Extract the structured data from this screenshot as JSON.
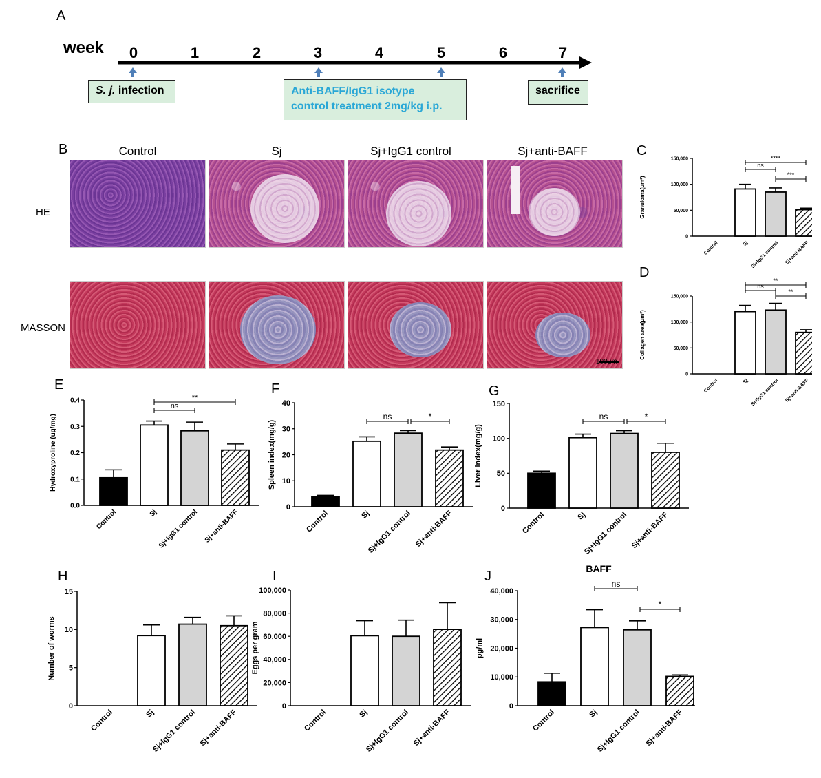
{
  "panels": {
    "A": "A",
    "B": "B",
    "C": "C",
    "D": "D",
    "E": "E",
    "F": "F",
    "G": "G",
    "H": "H",
    "I": "I",
    "J": "J"
  },
  "timeline": {
    "label": "week",
    "ticks": [
      "0",
      "1",
      "2",
      "3",
      "4",
      "5",
      "6",
      "7"
    ],
    "box_infection_italic": "S. j.",
    "box_infection_rest": " infection",
    "box_treatment_line1": "Anti-BAFF/IgG1 isotype",
    "box_treatment_line2": "control  treatment  2mg/kg i.p.",
    "box_sacrifice": "sacrifice"
  },
  "histology": {
    "columns": [
      "Control",
      "Sj",
      "Sj+IgG1 control",
      "Sj+anti-BAFF"
    ],
    "rows": [
      "HE",
      "MASSON"
    ],
    "scale_bar": "100μm"
  },
  "colors": {
    "dark": "#000000",
    "white": "#ffffff",
    "gray": "#d4d4d4"
  },
  "chart_data": [
    {
      "id": "C",
      "type": "bar",
      "categories": [
        "Control",
        "Sj",
        "Sj+IgG1 control",
        "Sj+anti-BAFF"
      ],
      "values": [
        0,
        91000,
        85000,
        51000
      ],
      "errors": [
        0,
        9000,
        8000,
        3000
      ],
      "ylabel": "Granuloma(μm²)",
      "ylim": [
        0,
        150000
      ],
      "yticks": [
        "0",
        "50,000",
        "100,000",
        "150,000"
      ],
      "fills": [
        "dark",
        "white",
        "gray",
        "hatch"
      ],
      "significance": [
        {
          "from": 1,
          "to": 2,
          "label": "ns"
        },
        {
          "from": 1,
          "to": 3,
          "label": "****"
        },
        {
          "from": 2,
          "to": 3,
          "label": "***"
        }
      ]
    },
    {
      "id": "D",
      "type": "bar",
      "categories": [
        "Control",
        "Sj",
        "Sj+IgG1 control",
        "Sj+anti-BAFF"
      ],
      "values": [
        0,
        120000,
        123000,
        80000
      ],
      "errors": [
        0,
        12000,
        13000,
        5000
      ],
      "ylabel": "Collagen area(μm²)",
      "ylim": [
        0,
        150000
      ],
      "yticks": [
        "0",
        "50,000",
        "100,000",
        "150,000"
      ],
      "fills": [
        "dark",
        "white",
        "gray",
        "hatch"
      ],
      "significance": [
        {
          "from": 1,
          "to": 2,
          "label": "ns"
        },
        {
          "from": 1,
          "to": 3,
          "label": "**"
        },
        {
          "from": 2,
          "to": 3,
          "label": "**"
        }
      ]
    },
    {
      "id": "E",
      "type": "bar",
      "categories": [
        "Control",
        "Sj",
        "Sj+IgG1 control",
        "Sj+anti-BAFF"
      ],
      "values": [
        0.105,
        0.305,
        0.283,
        0.21
      ],
      "errors": [
        0.03,
        0.015,
        0.033,
        0.023
      ],
      "ylabel": "Hydroxyproline (ug/mg)",
      "ylim": [
        0,
        0.4
      ],
      "yticks": [
        "0.0",
        "0.1",
        "0.2",
        "0.3",
        "0.4"
      ],
      "fills": [
        "dark",
        "white",
        "gray",
        "hatch"
      ],
      "significance": [
        {
          "from": 1,
          "to": 2,
          "label": "ns"
        },
        {
          "from": 1,
          "to": 3,
          "label": "**"
        }
      ]
    },
    {
      "id": "F",
      "type": "bar",
      "categories": [
        "Control",
        "Sj",
        "Sj+IgG1 control",
        "Sj+anti-BAFF"
      ],
      "values": [
        4,
        25.2,
        28.3,
        21.8
      ],
      "errors": [
        0.4,
        1.7,
        1.0,
        1.2
      ],
      "ylabel": "Spleen index(mg/g)",
      "ylim": [
        0,
        40
      ],
      "yticks": [
        "0",
        "10",
        "20",
        "30",
        "40"
      ],
      "fills": [
        "dark",
        "white",
        "gray",
        "hatch"
      ],
      "significance": [
        {
          "from": 1,
          "to": 2,
          "label": "ns"
        },
        {
          "from": 2,
          "to": 3,
          "label": "*"
        }
      ]
    },
    {
      "id": "G",
      "type": "bar",
      "categories": [
        "Control",
        "Sj",
        "Sj+IgG1 control",
        "Sj+anti-BAFF"
      ],
      "values": [
        50,
        101,
        107,
        80
      ],
      "errors": [
        3,
        5,
        4,
        13
      ],
      "ylabel": "Liver index(mg/g)",
      "ylim": [
        0,
        150
      ],
      "yticks": [
        "0",
        "50",
        "100",
        "150"
      ],
      "fills": [
        "dark",
        "white",
        "gray",
        "hatch"
      ],
      "significance": [
        {
          "from": 1,
          "to": 2,
          "label": "ns"
        },
        {
          "from": 2,
          "to": 3,
          "label": "*"
        }
      ]
    },
    {
      "id": "H",
      "type": "bar",
      "categories": [
        "Control",
        "Sj",
        "Sj+IgG1 control",
        "Sj+anti-BAFF"
      ],
      "values": [
        0,
        9.2,
        10.7,
        10.5
      ],
      "errors": [
        0,
        1.4,
        0.9,
        1.3
      ],
      "ylabel": "Number of worms",
      "ylim": [
        0,
        15
      ],
      "yticks": [
        "0",
        "5",
        "10",
        "15"
      ],
      "fills": [
        "dark",
        "white",
        "gray",
        "hatch"
      ],
      "significance": []
    },
    {
      "id": "I",
      "type": "bar",
      "categories": [
        "Control",
        "Sj",
        "Sj+IgG1 control",
        "Sj+anti-BAFF"
      ],
      "values": [
        0,
        60500,
        60000,
        66000
      ],
      "errors": [
        0,
        13000,
        14000,
        23000
      ],
      "ylabel": "Eggs per gram",
      "ylim": [
        0,
        100000
      ],
      "yticks": [
        "0",
        "20,000",
        "40,000",
        "60,000",
        "80,000",
        "100,000"
      ],
      "fills": [
        "dark",
        "white",
        "gray",
        "hatch"
      ],
      "significance": []
    },
    {
      "id": "J",
      "type": "bar",
      "title": "BAFF",
      "categories": [
        "Control",
        "Sj",
        "Sj+IgG1 control",
        "Sj+anti-BAFF"
      ],
      "values": [
        8300,
        27200,
        26400,
        10200
      ],
      "errors": [
        3000,
        6200,
        3100,
        500
      ],
      "ylabel": "pg/ml",
      "ylim": [
        0,
        40000
      ],
      "yticks": [
        "0",
        "10,000",
        "20,000",
        "30,000",
        "40,000"
      ],
      "fills": [
        "dark",
        "white",
        "gray",
        "hatch"
      ],
      "significance": [
        {
          "from": 1,
          "to": 2,
          "label": "ns"
        },
        {
          "from": 2,
          "to": 3,
          "label": "*"
        }
      ]
    }
  ]
}
